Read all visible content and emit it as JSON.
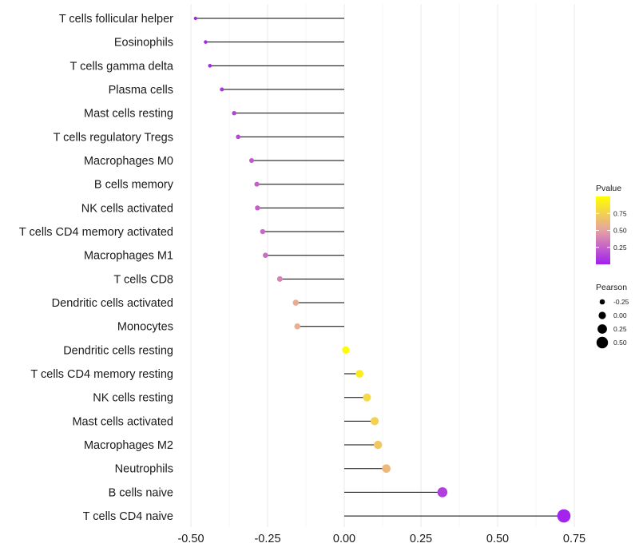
{
  "chart_data": {
    "type": "lollipop",
    "title": "",
    "xlabel": "",
    "ylabel": "",
    "xlim": [
      -0.5,
      0.75
    ],
    "x_ticks": [
      -0.5,
      -0.25,
      0.0,
      0.25,
      0.5,
      0.75
    ],
    "x_tick_labels": [
      "-0.50",
      "-0.25",
      "0.00",
      "0.25",
      "0.50",
      "0.75"
    ],
    "grid": true,
    "categories": [
      "T cells follicular helper",
      "Eosinophils",
      "T cells gamma delta",
      "Plasma cells",
      "Mast cells resting",
      "T cells regulatory  Tregs ",
      "Macrophages M0",
      "B cells memory",
      "NK cells activated",
      "T cells CD4 memory activated",
      "Macrophages M1",
      "T cells CD8",
      "Dendritic cells activated",
      "Monocytes",
      "Dendritic cells resting",
      "T cells CD4 memory resting",
      "NK cells resting",
      "Mast cells activated",
      "Macrophages M2",
      "Neutrophils",
      "B cells naive",
      "T cells CD4 naive"
    ],
    "pearson": [
      -0.485,
      -0.452,
      -0.438,
      -0.399,
      -0.359,
      -0.346,
      -0.302,
      -0.285,
      -0.283,
      -0.266,
      -0.257,
      -0.21,
      -0.158,
      -0.153,
      0.005,
      0.05,
      0.074,
      0.099,
      0.11,
      0.137,
      0.32,
      0.716
    ],
    "pvalue": [
      0.01,
      0.02,
      0.03,
      0.08,
      0.13,
      0.15,
      0.22,
      0.25,
      0.25,
      0.28,
      0.3,
      0.38,
      0.55,
      0.56,
      0.98,
      0.9,
      0.8,
      0.75,
      0.7,
      0.62,
      0.12,
      0.02
    ],
    "legend_color": {
      "title": "Pvalue",
      "labels": [
        "0.75",
        "0.50",
        "0.25"
      ],
      "values": [
        0.75,
        0.5,
        0.25
      ],
      "range": [
        0.0,
        1.0
      ],
      "low_color": "#a020f0",
      "mid_color": "#e6a2a2",
      "high_color": "#ffff00",
      "position": "right"
    },
    "legend_size": {
      "title": "Pearson",
      "labels": [
        "-0.25",
        "0.00",
        "0.25",
        "0.50"
      ],
      "values": [
        -0.25,
        0.0,
        0.25,
        0.5
      ],
      "position": "right"
    }
  }
}
